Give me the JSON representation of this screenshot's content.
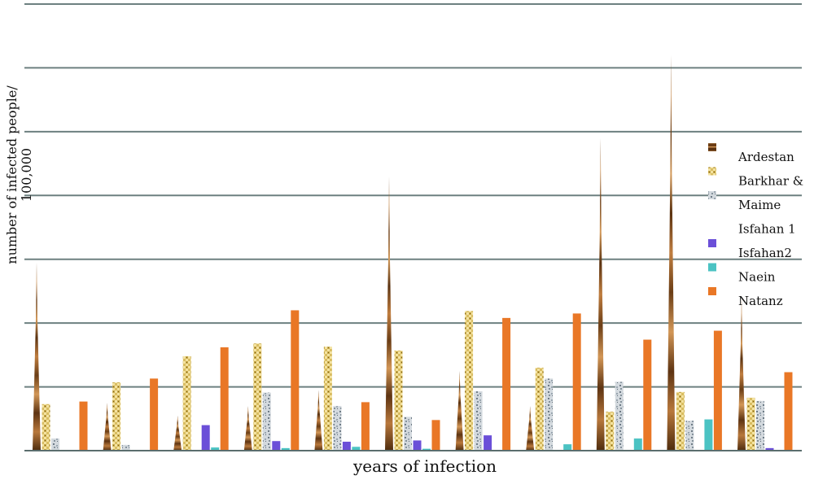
{
  "chart_data": {
    "type": "bar",
    "xlabel": "years of infection",
    "ylabel_line1": "number of infected people/",
    "ylabel_line2": "100,000",
    "ylim": [
      0,
      70
    ],
    "grid": true,
    "legend_position": "right",
    "groups": 11,
    "series": [
      {
        "name": "Ardestan",
        "color": "#8a5a2b",
        "pattern": "wood",
        "shape": "spike",
        "values": [
          29.5,
          7.5,
          5.5,
          7,
          9.5,
          43,
          12.5,
          7,
          49,
          62,
          24
        ]
      },
      {
        "name": "Barkhar &",
        "color": "#e8cf7a",
        "pattern": "checker",
        "shape": "bar",
        "values": [
          7.3,
          10.7,
          14.8,
          16.8,
          16.3,
          15.7,
          21.9,
          13,
          6.1,
          9.2,
          8.3
        ]
      },
      {
        "name": "Maime",
        "color": "#b8c0c8",
        "pattern": "speckle",
        "shape": "bar",
        "values": [
          1.9,
          0.9,
          null,
          9.1,
          7,
          5.3,
          9.3,
          11.3,
          10.8,
          4.7,
          7.8
        ]
      },
      {
        "name": "Isfahan2",
        "color": "#6b4fd8",
        "pattern": "solid",
        "shape": "bar",
        "values": [
          null,
          null,
          4,
          1.5,
          1.4,
          1.6,
          2.4,
          null,
          null,
          null,
          0.4
        ]
      },
      {
        "name": "Naein",
        "color": "#4bc3c3",
        "pattern": "solid",
        "shape": "bar",
        "values": [
          null,
          null,
          0.5,
          0.4,
          0.6,
          0.3,
          null,
          1,
          1.9,
          4.9,
          null
        ]
      },
      {
        "name": "Natanz",
        "color": "#e97726",
        "pattern": "solid",
        "shape": "bar",
        "values": [
          7.7,
          11.3,
          16.2,
          22,
          7.6,
          4.8,
          20.8,
          21.5,
          17.4,
          18.8,
          12.3
        ]
      }
    ],
    "legend": [
      {
        "label": "Ardestan",
        "swatch": "wood"
      },
      {
        "label": "Barkhar &",
        "swatch": "checker"
      },
      {
        "label": "Maime",
        "swatch": "speckle"
      },
      {
        "label": "Isfahan 1",
        "swatch": "none"
      },
      {
        "label": "Isfahan2",
        "swatch": "purple"
      },
      {
        "label": "Naein",
        "swatch": "teal"
      },
      {
        "label": "Natanz",
        "swatch": "orange"
      }
    ]
  }
}
